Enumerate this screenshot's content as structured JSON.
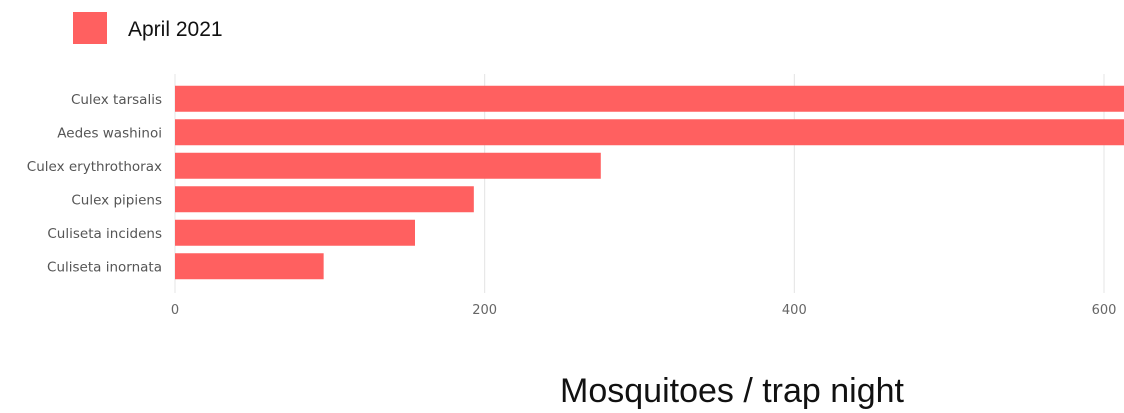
{
  "chart_data": {
    "type": "bar",
    "orientation": "horizontal",
    "categories": [
      "Culex tarsalis",
      "Aedes washinoi",
      "Culex erythrothorax",
      "Culex pipiens",
      "Culiseta incidens",
      "Culiseta inornata"
    ],
    "series": [
      {
        "name": "April 2021",
        "color": "#ff6060",
        "values": [
          620,
          620,
          275,
          193,
          155,
          96
        ]
      }
    ],
    "xlabel": "Mosquitoes / trap night",
    "ylabel": "",
    "xlim": [
      0,
      610
    ],
    "xticks": [
      0,
      200,
      400,
      600
    ],
    "xtick_labels": [
      "0",
      "200",
      "400",
      "600"
    ],
    "grid": "vertical",
    "legend_position": "top-left"
  }
}
